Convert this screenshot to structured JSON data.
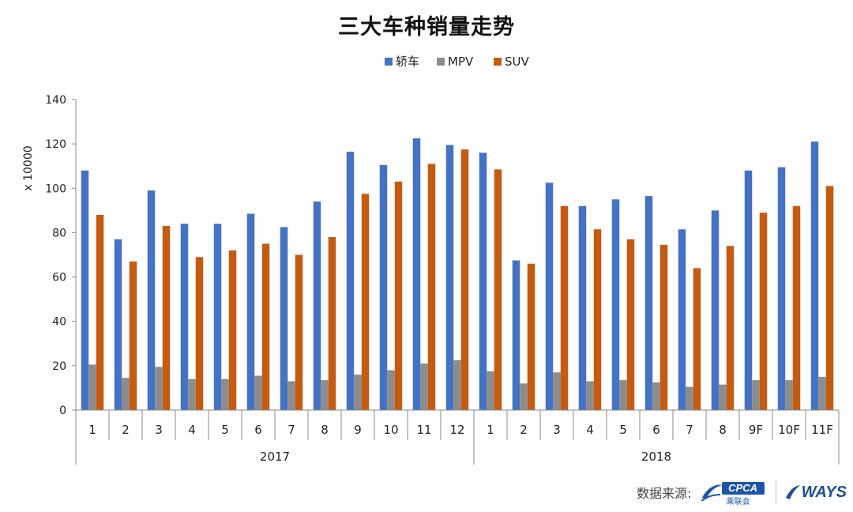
{
  "chart_data": {
    "type": "bar",
    "title": "三大车种销量走势",
    "ylabel": "x 10000",
    "ylim": [
      0,
      140
    ],
    "yticks": [
      0,
      20,
      40,
      60,
      80,
      100,
      120,
      140
    ],
    "legend_position": "top-center",
    "grid": false,
    "categories": [
      "1",
      "2",
      "3",
      "4",
      "5",
      "6",
      "7",
      "8",
      "9",
      "10",
      "11",
      "12",
      "1",
      "2",
      "3",
      "4",
      "5",
      "6",
      "7",
      "8",
      "9F",
      "10F",
      "11F"
    ],
    "groups": [
      {
        "label": "2017",
        "start": 0,
        "count": 12
      },
      {
        "label": "2018",
        "start": 12,
        "count": 11
      }
    ],
    "series": [
      {
        "name": "轿车",
        "color": "#4472c4",
        "values": [
          108,
          77,
          99,
          84,
          84,
          88.5,
          82.5,
          94,
          116.5,
          110.5,
          122.5,
          119.5,
          116,
          67.5,
          102.5,
          92,
          95,
          96.5,
          81.5,
          90,
          108,
          109.5,
          121
        ]
      },
      {
        "name": "MPV",
        "color": "#8c8c8c",
        "values": [
          20.5,
          14.5,
          19.5,
          14,
          14,
          15.5,
          13,
          13.5,
          16,
          18,
          21,
          22.5,
          17.5,
          12,
          17,
          13,
          13.5,
          12.5,
          10.5,
          11.5,
          13.5,
          13.5,
          15
        ]
      },
      {
        "name": "SUV",
        "color": "#c55a11",
        "values": [
          88,
          67,
          83,
          69,
          72,
          75,
          70,
          78,
          97.5,
          103,
          111,
          117.5,
          108.5,
          66,
          92,
          81.5,
          77,
          74.5,
          64,
          74,
          89,
          92,
          101
        ]
      }
    ]
  },
  "footer": {
    "source_label": "数据来源:",
    "logo_cpca": "CPCA",
    "logo_cpca_cn": "乘联会",
    "logo_ways": "WAYS"
  }
}
